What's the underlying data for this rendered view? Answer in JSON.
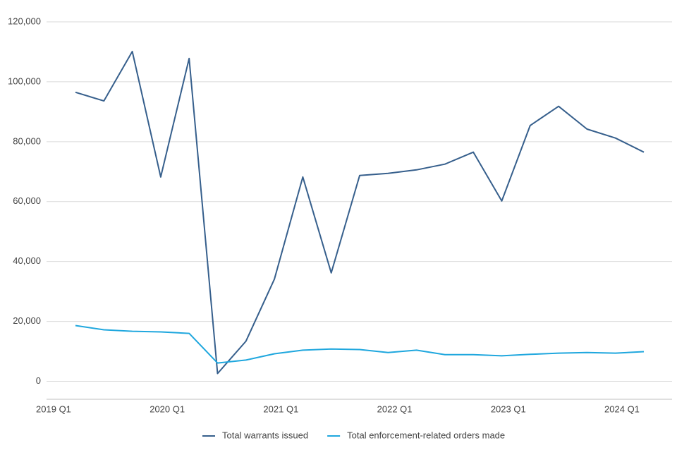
{
  "chart_data": {
    "type": "line",
    "categories": [
      "2019 Q1",
      null,
      null,
      null,
      "2020 Q1",
      null,
      null,
      null,
      "2021 Q1",
      null,
      null,
      null,
      "2022 Q1",
      null,
      null,
      null,
      "2023 Q1",
      null,
      null,
      null,
      "2024 Q1"
    ],
    "series": [
      {
        "name": "Total warrants issued",
        "color": "#365f8c",
        "values": [
          96500,
          93600,
          110100,
          68200,
          107800,
          2600,
          13400,
          34100,
          68200,
          36200,
          68700,
          69400,
          70600,
          72500,
          76500,
          60200,
          85400,
          91800,
          84200,
          81200,
          76500
        ]
      },
      {
        "name": "Total enforcement-related orders made",
        "color": "#1fa7de",
        "values": [
          18600,
          17200,
          16700,
          16500,
          16000,
          6100,
          7100,
          9200,
          10400,
          10800,
          10600,
          9600,
          10400,
          8900,
          8900,
          8500,
          9000,
          9400,
          9600,
          9400,
          9900
        ]
      }
    ],
    "ylim": [
      -6000,
      120000
    ],
    "yticks": [
      0,
      {
        "value": 20000,
        "label": "20,000"
      },
      {
        "value": 40000,
        "label": "40,000"
      },
      {
        "value": 60000,
        "label": "60,000"
      },
      {
        "value": 80000,
        "label": "80,000"
      },
      {
        "value": 100000,
        "label": "100,000"
      },
      {
        "value": 120000,
        "label": "120,000"
      }
    ],
    "grid": true,
    "legend": "bottom"
  }
}
